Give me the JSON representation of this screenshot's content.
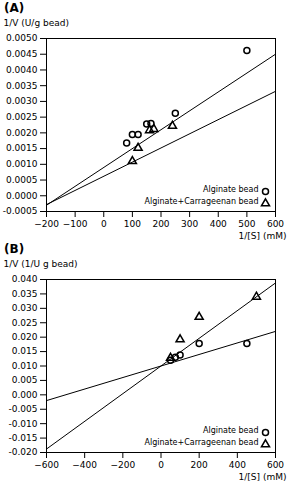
{
  "chart_data": [
    {
      "type": "scatter",
      "title": "(A)",
      "xlabel": "1/[S] (mM)",
      "ylabel": "1/V (U/g bead)",
      "xlim": [
        -200,
        600
      ],
      "ylim": [
        -0.0005,
        0.005
      ],
      "xticks": [
        -200,
        -100,
        0,
        100,
        200,
        300,
        400,
        500,
        600
      ],
      "yticks": [
        {
          "value": -0.0005,
          "label": "-0.0005"
        },
        {
          "value": 0,
          "label": "0.0000"
        },
        {
          "value": 0.0005,
          "label": "0.0005"
        },
        {
          "value": 0.001,
          "label": "0.0010"
        },
        {
          "value": 0.0015,
          "label": "0.0015"
        },
        {
          "value": 0.002,
          "label": "0.0020"
        },
        {
          "value": 0.0025,
          "label": "0.0025"
        },
        {
          "value": 0.003,
          "label": "0.0030"
        },
        {
          "value": 0.0035,
          "label": "0.0035"
        },
        {
          "value": 0.004,
          "label": "0.0040"
        },
        {
          "value": 0.0045,
          "label": "0.0045"
        },
        {
          "value": 0.005,
          "label": "0.0050"
        }
      ],
      "legend": "lower right",
      "series": [
        {
          "name": "Alginate bead",
          "marker": "circle",
          "color": "black",
          "x": [
            80,
            100,
            120,
            150,
            165,
            250,
            500
          ],
          "values": [
            0.00168,
            0.00195,
            0.00195,
            0.00228,
            0.0023,
            0.00262,
            0.00462
          ],
          "trendline": {
            "x": [
              -200,
              600
            ],
            "values": [
              -0.0003,
              0.0045
            ]
          }
        },
        {
          "name": "Alginate+Carrageenan bead",
          "marker": "triangle",
          "color": "black",
          "x": [
            100,
            120,
            160,
            175,
            240
          ],
          "values": [
            0.0011,
            0.00152,
            0.00208,
            0.00212,
            0.00222
          ],
          "trendline": {
            "x": [
              -200,
              600
            ],
            "values": [
              -0.00028,
              0.00332
            ]
          }
        }
      ]
    },
    {
      "type": "scatter",
      "title": "(B)",
      "xlabel": "1/[S] (mM)",
      "ylabel": "1/V (1/U g bead)",
      "xlim": [
        -600,
        600
      ],
      "ylim": [
        -0.02,
        0.04
      ],
      "xticks": [
        -600,
        -400,
        -200,
        0,
        200,
        400,
        600
      ],
      "yticks": [
        {
          "value": -0.02,
          "label": "-0.020"
        },
        {
          "value": -0.015,
          "label": "-0.015"
        },
        {
          "value": -0.01,
          "label": "-0.010"
        },
        {
          "value": -0.005,
          "label": "-0.005"
        },
        {
          "value": 0,
          "label": "0.000"
        },
        {
          "value": 0.005,
          "label": "0.005"
        },
        {
          "value": 0.01,
          "label": "0.010"
        },
        {
          "value": 0.015,
          "label": "0.015"
        },
        {
          "value": 0.02,
          "label": "0.020"
        },
        {
          "value": 0.025,
          "label": "0.025"
        },
        {
          "value": 0.03,
          "label": "0.030"
        },
        {
          "value": 0.035,
          "label": "0.035"
        },
        {
          "value": 0.04,
          "label": "0.040"
        }
      ],
      "legend": "lower right",
      "series": [
        {
          "name": "Alginate bead",
          "marker": "circle",
          "color": "black",
          "x": [
            50,
            75,
            100,
            200,
            450
          ],
          "values": [
            0.012,
            0.013,
            0.0138,
            0.0178,
            0.0178
          ],
          "trendline": {
            "x": [
              -600,
              600
            ],
            "values": [
              -0.002,
              0.022
            ]
          }
        },
        {
          "name": "Alginate+Carrageenan bead",
          "marker": "triangle",
          "color": "black",
          "x": [
            50,
            100,
            200,
            500
          ],
          "values": [
            0.0128,
            0.0192,
            0.027,
            0.034
          ],
          "trendline": {
            "x": [
              -600,
              600
            ],
            "values": [
              -0.0188,
              0.0388
            ]
          }
        }
      ]
    }
  ]
}
